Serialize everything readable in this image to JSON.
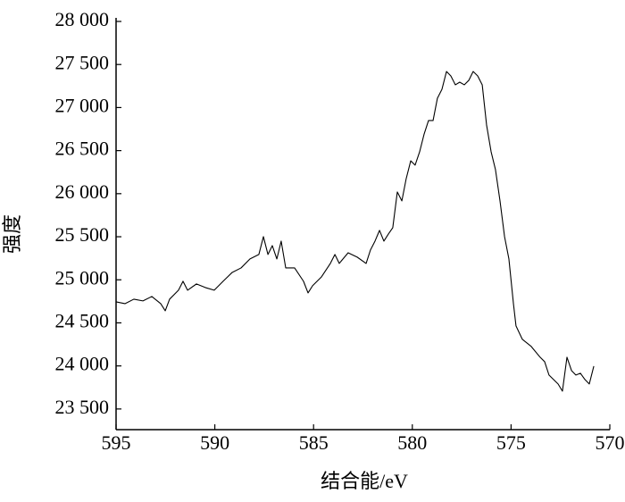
{
  "chart_data": {
    "type": "line",
    "x_label": "结合能/eV",
    "y_label": "强度",
    "color": "#000000",
    "xlim": [
      595,
      570
    ],
    "xticks": [
      595,
      590,
      585,
      580,
      575,
      570
    ],
    "ylim": [
      23260,
      28000
    ],
    "yticks": [
      {
        "value": 23500,
        "label": "23 500"
      },
      {
        "value": 24000,
        "label": "24 000"
      },
      {
        "value": 24500,
        "label": "24 500"
      },
      {
        "value": 25000,
        "label": "25 000"
      },
      {
        "value": 25500,
        "label": "25 500"
      },
      {
        "value": 26000,
        "label": "26 000"
      },
      {
        "value": 26500,
        "label": "26 500"
      },
      {
        "value": 27000,
        "label": "27 000"
      },
      {
        "value": 27500,
        "label": "27 500"
      },
      {
        "value": 28000,
        "label": "28 000"
      }
    ],
    "x": [
      595,
      594.55,
      594.1,
      593.64,
      593.19,
      592.74,
      592.51,
      592.29,
      591.84,
      591.61,
      591.38,
      590.93,
      590.48,
      590.03,
      589.58,
      589.12,
      588.67,
      588.22,
      587.77,
      587.54,
      587.31,
      587.09,
      586.86,
      586.64,
      586.41,
      585.96,
      585.51,
      585.28,
      585.05,
      584.6,
      584.15,
      583.92,
      583.7,
      583.25,
      582.79,
      582.34,
      582.12,
      581.89,
      581.66,
      581.44,
      581.21,
      580.99,
      580.76,
      580.53,
      580.31,
      580.08,
      579.86,
      579.63,
      579.4,
      579.18,
      578.95,
      578.73,
      578.5,
      578.27,
      578.05,
      577.82,
      577.6,
      577.37,
      577.14,
      576.92,
      576.69,
      576.46,
      576.24,
      576.01,
      575.79,
      575.56,
      575.33,
      575.11,
      574.88,
      574.75,
      574.43,
      573.98,
      573.53,
      573.3,
      573.08,
      572.85,
      572.62,
      572.4,
      572.17,
      571.94,
      571.72,
      571.49,
      571.26,
      571.04,
      570.81
    ],
    "values": [
      24744,
      24723,
      24775,
      24755,
      24806,
      24723,
      24640,
      24775,
      24879,
      24983,
      24879,
      24952,
      24910,
      24879,
      24983,
      25086,
      25138,
      25242,
      25294,
      25501,
      25294,
      25397,
      25242,
      25449,
      25138,
      25138,
      24983,
      24848,
      24931,
      25034,
      25190,
      25294,
      25190,
      25314,
      25263,
      25190,
      25346,
      25449,
      25574,
      25449,
      25532,
      25605,
      26020,
      25916,
      26175,
      26382,
      26331,
      26486,
      26694,
      26849,
      26849,
      27108,
      27212,
      27419,
      27367,
      27264,
      27295,
      27264,
      27316,
      27419,
      27367,
      27264,
      26797,
      26486,
      26279,
      25916,
      25501,
      25242,
      24723,
      24464,
      24309,
      24226,
      24101,
      24049,
      23894,
      23842,
      23790,
      23707,
      24101,
      23946,
      23894,
      23915,
      23842,
      23790,
      23998
    ]
  }
}
